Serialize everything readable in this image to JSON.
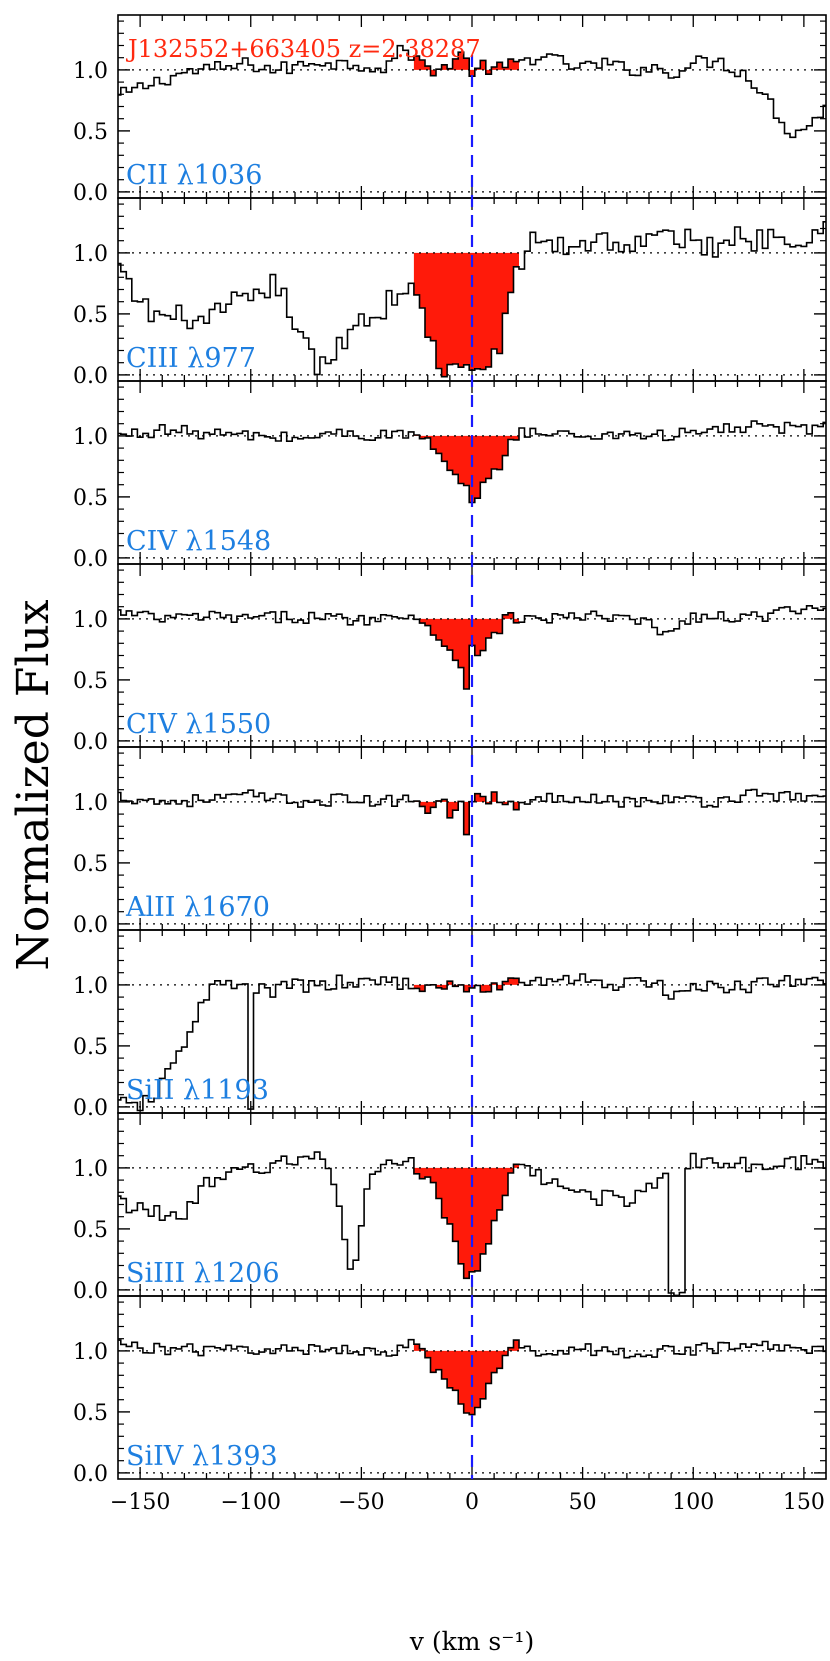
{
  "chart_data": {
    "type": "line",
    "title": "J132552+663405 z=2.38287",
    "xlabel": "v (km s⁻¹)",
    "ylabel": "Normalized Flux",
    "xlim": [
      -160,
      160
    ],
    "ylim": [
      -0.05,
      1.45
    ],
    "x_ticks": [
      -150,
      -100,
      -50,
      0,
      50,
      100,
      150
    ],
    "x_tick_labels": [
      "−150",
      "−100",
      "−50",
      "0",
      "50",
      "100",
      "150"
    ],
    "y_ticks": [
      0.0,
      0.5,
      1.0
    ],
    "y_tick_labels": [
      "0.0",
      "0.5",
      "1.0"
    ],
    "grid": false,
    "reference_lines": {
      "continuum": 1.0,
      "zero": 0.0,
      "systemic_velocity": 0
    },
    "absorption_window": [
      -25,
      20
    ],
    "colors": {
      "spectrum": "#000000",
      "absorption_fill": "#ff1a0a",
      "label": "#1e7fe0",
      "title": "#ff2a10",
      "velocity_line": "#1a1aff"
    },
    "series": [
      {
        "name": "CII λ1036",
        "continuum_noise": 0.06,
        "points": [
          [
            -160,
            0.78
          ],
          [
            -150,
            0.85
          ],
          [
            -140,
            0.92
          ],
          [
            -130,
            0.98
          ],
          [
            -120,
            1.0
          ],
          [
            -110,
            1.02
          ],
          [
            -100,
            1.05
          ],
          [
            -90,
            1.0
          ],
          [
            -80,
            1.02
          ],
          [
            -70,
            1.08
          ],
          [
            -60,
            1.05
          ],
          [
            -50,
            1.05
          ],
          [
            -40,
            1.02
          ],
          [
            -30,
            1.18
          ],
          [
            -25,
            1.08
          ],
          [
            -20,
            1.02
          ],
          [
            -15,
            1.0
          ],
          [
            -10,
            1.05
          ],
          [
            -5,
            1.12
          ],
          [
            0,
            1.0
          ],
          [
            5,
            1.02
          ],
          [
            10,
            1.0
          ],
          [
            15,
            1.02
          ],
          [
            20,
            1.05
          ],
          [
            30,
            1.12
          ],
          [
            40,
            1.06
          ],
          [
            50,
            1.02
          ],
          [
            60,
            1.05
          ],
          [
            70,
            1.0
          ],
          [
            80,
            1.02
          ],
          [
            90,
            0.98
          ],
          [
            100,
            1.05
          ],
          [
            110,
            1.08
          ],
          [
            120,
            1.0
          ],
          [
            125,
            0.95
          ],
          [
            130,
            0.85
          ],
          [
            135,
            0.72
          ],
          [
            140,
            0.58
          ],
          [
            145,
            0.48
          ],
          [
            150,
            0.52
          ],
          [
            155,
            0.6
          ],
          [
            160,
            0.68
          ]
        ]
      },
      {
        "name": "CIII λ977",
        "continuum_noise": 0.1,
        "points": [
          [
            -160,
            0.88
          ],
          [
            -155,
            0.7
          ],
          [
            -150,
            0.6
          ],
          [
            -145,
            0.5
          ],
          [
            -140,
            0.48
          ],
          [
            -135,
            0.45
          ],
          [
            -130,
            0.5
          ],
          [
            -125,
            0.45
          ],
          [
            -120,
            0.38
          ],
          [
            -115,
            0.5
          ],
          [
            -110,
            0.55
          ],
          [
            -105,
            0.62
          ],
          [
            -100,
            0.55
          ],
          [
            -95,
            0.68
          ],
          [
            -90,
            0.75
          ],
          [
            -85,
            0.62
          ],
          [
            -80,
            0.45
          ],
          [
            -75,
            0.22
          ],
          [
            -70,
            0.05
          ],
          [
            -65,
            0.08
          ],
          [
            -60,
            0.25
          ],
          [
            -55,
            0.38
          ],
          [
            -50,
            0.48
          ],
          [
            -45,
            0.45
          ],
          [
            -40,
            0.55
          ],
          [
            -35,
            0.65
          ],
          [
            -30,
            0.72
          ],
          [
            -25,
            0.62
          ],
          [
            -22,
            0.5
          ],
          [
            -19,
            0.3
          ],
          [
            -16,
            0.15
          ],
          [
            -13,
            0.05
          ],
          [
            -10,
            0.0
          ],
          [
            -7,
            0.05
          ],
          [
            -4,
            0.02
          ],
          [
            -1,
            0.0
          ],
          [
            2,
            0.08
          ],
          [
            5,
            0.05
          ],
          [
            8,
            0.1
          ],
          [
            11,
            0.2
          ],
          [
            14,
            0.35
          ],
          [
            17,
            0.55
          ],
          [
            20,
            0.82
          ],
          [
            25,
            1.05
          ],
          [
            30,
            1.12
          ],
          [
            40,
            1.05
          ],
          [
            50,
            1.08
          ],
          [
            60,
            1.12
          ],
          [
            70,
            1.05
          ],
          [
            80,
            1.1
          ],
          [
            90,
            1.15
          ],
          [
            100,
            1.08
          ],
          [
            110,
            1.05
          ],
          [
            120,
            1.15
          ],
          [
            130,
            1.1
          ],
          [
            140,
            1.18
          ],
          [
            150,
            1.12
          ],
          [
            160,
            1.22
          ]
        ]
      },
      {
        "name": "CIV λ1548",
        "continuum_noise": 0.05,
        "points": [
          [
            -160,
            1.0
          ],
          [
            -140,
            1.05
          ],
          [
            -120,
            1.02
          ],
          [
            -100,
            1.0
          ],
          [
            -80,
            0.98
          ],
          [
            -60,
            1.02
          ],
          [
            -40,
            1.0
          ],
          [
            -30,
            1.02
          ],
          [
            -25,
            1.0
          ],
          [
            -20,
            0.95
          ],
          [
            -16,
            0.85
          ],
          [
            -12,
            0.75
          ],
          [
            -8,
            0.65
          ],
          [
            -4,
            0.58
          ],
          [
            0,
            0.5
          ],
          [
            3,
            0.52
          ],
          [
            6,
            0.6
          ],
          [
            9,
            0.68
          ],
          [
            12,
            0.75
          ],
          [
            15,
            0.85
          ],
          [
            18,
            0.95
          ],
          [
            21,
            1.05
          ],
          [
            30,
            1.02
          ],
          [
            50,
            1.0
          ],
          [
            70,
            1.02
          ],
          [
            90,
            1.0
          ],
          [
            110,
            1.05
          ],
          [
            130,
            1.08
          ],
          [
            150,
            1.05
          ],
          [
            160,
            1.1
          ]
        ]
      },
      {
        "name": "CIV λ1550",
        "continuum_noise": 0.05,
        "points": [
          [
            -160,
            1.05
          ],
          [
            -140,
            1.0
          ],
          [
            -120,
            1.02
          ],
          [
            -100,
            1.0
          ],
          [
            -80,
            1.02
          ],
          [
            -60,
            1.0
          ],
          [
            -40,
            1.0
          ],
          [
            -30,
            1.05
          ],
          [
            -25,
            1.0
          ],
          [
            -20,
            0.95
          ],
          [
            -16,
            0.85
          ],
          [
            -12,
            0.78
          ],
          [
            -8,
            0.72
          ],
          [
            -4,
            0.55
          ],
          [
            -2,
            0.45
          ],
          [
            0,
            0.78
          ],
          [
            4,
            0.72
          ],
          [
            8,
            0.82
          ],
          [
            12,
            0.9
          ],
          [
            15,
            1.0
          ],
          [
            18,
            1.02
          ],
          [
            20,
            1.0
          ],
          [
            30,
            1.0
          ],
          [
            50,
            1.02
          ],
          [
            70,
            1.0
          ],
          [
            80,
            0.95
          ],
          [
            90,
            0.88
          ],
          [
            100,
            1.02
          ],
          [
            120,
            1.0
          ],
          [
            140,
            1.05
          ],
          [
            160,
            1.08
          ]
        ]
      },
      {
        "name": "AlII λ1670",
        "continuum_noise": 0.05,
        "points": [
          [
            -160,
            1.05
          ],
          [
            -140,
            1.0
          ],
          [
            -120,
            1.02
          ],
          [
            -100,
            1.05
          ],
          [
            -80,
            1.0
          ],
          [
            -60,
            1.02
          ],
          [
            -40,
            1.0
          ],
          [
            -25,
            1.02
          ],
          [
            -20,
            0.95
          ],
          [
            -15,
            1.05
          ],
          [
            -10,
            0.9
          ],
          [
            -5,
            1.0
          ],
          [
            -3,
            0.72
          ],
          [
            0,
            1.05
          ],
          [
            5,
            1.0
          ],
          [
            10,
            1.05
          ],
          [
            15,
            1.0
          ],
          [
            20,
            0.95
          ],
          [
            30,
            1.02
          ],
          [
            50,
            1.05
          ],
          [
            70,
            1.0
          ],
          [
            90,
            1.02
          ],
          [
            110,
            1.0
          ],
          [
            130,
            1.08
          ],
          [
            150,
            1.02
          ],
          [
            160,
            1.05
          ]
        ]
      },
      {
        "name": "SiII λ1193",
        "continuum_noise": 0.06,
        "points": [
          [
            -160,
            0.02
          ],
          [
            -150,
            0.02
          ],
          [
            -145,
            0.05
          ],
          [
            -140,
            0.18
          ],
          [
            -135,
            0.35
          ],
          [
            -130,
            0.52
          ],
          [
            -125,
            0.75
          ],
          [
            -120,
            0.92
          ],
          [
            -115,
            1.0
          ],
          [
            -110,
            1.0
          ],
          [
            -105,
            0.98
          ],
          [
            -102,
            0.98
          ],
          [
            -100,
            0.0
          ],
          [
            -98,
            0.95
          ],
          [
            -90,
            0.95
          ],
          [
            -80,
            1.0
          ],
          [
            -70,
            0.98
          ],
          [
            -60,
            1.02
          ],
          [
            -50,
            1.0
          ],
          [
            -40,
            1.05
          ],
          [
            -25,
            1.0
          ],
          [
            -15,
            0.95
          ],
          [
            -5,
            1.0
          ],
          [
            5,
            0.95
          ],
          [
            15,
            1.0
          ],
          [
            20,
            1.05
          ],
          [
            30,
            1.02
          ],
          [
            50,
            1.05
          ],
          [
            70,
            1.0
          ],
          [
            85,
            1.05
          ],
          [
            90,
            0.85
          ],
          [
            95,
            0.95
          ],
          [
            110,
            0.98
          ],
          [
            130,
            1.0
          ],
          [
            150,
            1.05
          ],
          [
            160,
            1.02
          ]
        ]
      },
      {
        "name": "SiIII λ1206",
        "continuum_noise": 0.07,
        "points": [
          [
            -160,
            0.72
          ],
          [
            -150,
            0.68
          ],
          [
            -140,
            0.6
          ],
          [
            -130,
            0.65
          ],
          [
            -120,
            0.85
          ],
          [
            -110,
            0.92
          ],
          [
            -100,
            1.0
          ],
          [
            -90,
            1.02
          ],
          [
            -80,
            1.05
          ],
          [
            -70,
            1.1
          ],
          [
            -65,
            1.02
          ],
          [
            -60,
            0.75
          ],
          [
            -57,
            0.35
          ],
          [
            -55,
            0.12
          ],
          [
            -52,
            0.3
          ],
          [
            -48,
            0.75
          ],
          [
            -45,
            1.0
          ],
          [
            -35,
            1.05
          ],
          [
            -25,
            1.0
          ],
          [
            -20,
            0.95
          ],
          [
            -16,
            0.82
          ],
          [
            -12,
            0.62
          ],
          [
            -8,
            0.4
          ],
          [
            -5,
            0.22
          ],
          [
            -2,
            0.12
          ],
          [
            0,
            0.08
          ],
          [
            3,
            0.15
          ],
          [
            6,
            0.28
          ],
          [
            9,
            0.45
          ],
          [
            12,
            0.65
          ],
          [
            15,
            0.82
          ],
          [
            18,
            0.95
          ],
          [
            20,
            1.0
          ],
          [
            30,
            0.92
          ],
          [
            40,
            0.85
          ],
          [
            50,
            0.8
          ],
          [
            60,
            0.75
          ],
          [
            70,
            0.75
          ],
          [
            80,
            0.85
          ],
          [
            88,
            0.95
          ],
          [
            90,
            0.0
          ],
          [
            95,
            0.0
          ],
          [
            97,
            1.05
          ],
          [
            110,
            1.05
          ],
          [
            130,
            1.0
          ],
          [
            150,
            1.05
          ],
          [
            160,
            1.02
          ]
        ]
      },
      {
        "name": "SiIV λ1393",
        "continuum_noise": 0.05,
        "points": [
          [
            -160,
            1.05
          ],
          [
            -140,
            1.02
          ],
          [
            -120,
            1.0
          ],
          [
            -100,
            1.02
          ],
          [
            -80,
            1.0
          ],
          [
            -60,
            1.02
          ],
          [
            -40,
            1.0
          ],
          [
            -30,
            1.02
          ],
          [
            -25,
            1.1
          ],
          [
            -22,
            0.95
          ],
          [
            -18,
            0.85
          ],
          [
            -14,
            0.78
          ],
          [
            -10,
            0.7
          ],
          [
            -6,
            0.6
          ],
          [
            -3,
            0.52
          ],
          [
            0,
            0.48
          ],
          [
            3,
            0.55
          ],
          [
            6,
            0.65
          ],
          [
            9,
            0.75
          ],
          [
            12,
            0.85
          ],
          [
            15,
            0.95
          ],
          [
            18,
            1.02
          ],
          [
            20,
            1.05
          ],
          [
            30,
            1.0
          ],
          [
            50,
            1.02
          ],
          [
            70,
            0.98
          ],
          [
            90,
            1.0
          ],
          [
            110,
            1.02
          ],
          [
            130,
            1.05
          ],
          [
            150,
            1.0
          ],
          [
            160,
            1.02
          ]
        ]
      }
    ]
  }
}
